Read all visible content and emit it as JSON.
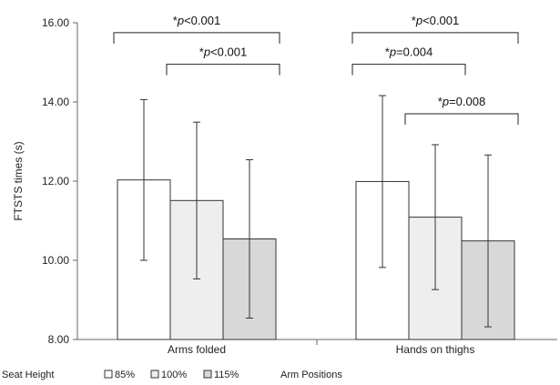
{
  "chart_data": {
    "type": "bar",
    "ylabel": "FTSTS times (s)",
    "ylim": [
      8,
      16
    ],
    "yticks": [
      "8.00",
      "10.00",
      "12.00",
      "14.00",
      "16.00"
    ],
    "categories": [
      "Arms folded",
      "Hands on thighs"
    ],
    "series": [
      {
        "name": "85%",
        "values": [
          12.03,
          11.99
        ],
        "error": [
          2.03,
          2.17
        ],
        "color": "#ffffff"
      },
      {
        "name": "100%",
        "values": [
          11.51,
          11.09
        ],
        "error": [
          1.98,
          1.83
        ],
        "color": "#eeeeee"
      },
      {
        "name": "115%",
        "values": [
          10.54,
          10.49
        ],
        "error": [
          2.0,
          2.17
        ],
        "color": "#d8d8d8"
      }
    ],
    "legend": {
      "title": "Seat Height",
      "position": "bottom",
      "footer": "Arm Positions"
    },
    "annotations": [
      {
        "text_pre": "*",
        "text_p": "p",
        "text_post": "<0.001",
        "category": 0,
        "from_series": 0,
        "to_series": 2,
        "y": 15.75
      },
      {
        "text_pre": "*",
        "text_p": "p",
        "text_post": "<0.001",
        "category": 0,
        "from_series": 1,
        "to_series": 2,
        "y": 14.95
      },
      {
        "text_pre": "*",
        "text_p": "p",
        "text_post": "<0.001",
        "category": 1,
        "from_series": 0,
        "to_series": 2,
        "y": 15.75
      },
      {
        "text_pre": "*",
        "text_p": "p",
        "text_post": "=0.004",
        "category": 1,
        "from_series": 0,
        "to_series": 1,
        "y": 14.95
      },
      {
        "text_pre": "*",
        "text_p": "p",
        "text_post": "=0.008",
        "category": 1,
        "from_series": 1,
        "to_series": 2,
        "y": 13.7
      }
    ]
  }
}
